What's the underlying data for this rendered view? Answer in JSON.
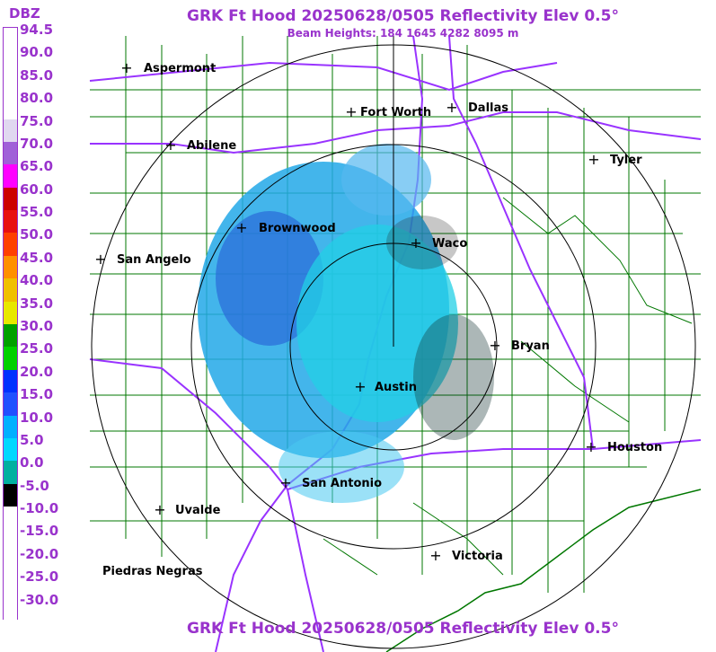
{
  "header": {
    "title": "GRK Ft Hood 20250628/0505 Reflectivity Elev 0.5°",
    "subtitle": "Beam Heights: 184 1645 4282 8095 m",
    "title_bottom": "GRK Ft Hood 20250628/0505 Reflectivity Elev 0.5°"
  },
  "legend": {
    "title": "DBZ",
    "labels": [
      "94.5",
      "90.0",
      "85.0",
      "80.0",
      "75.0",
      "70.0",
      "65.0",
      "60.0",
      "55.0",
      "50.0",
      "45.0",
      "40.0",
      "35.0",
      "30.0",
      "25.0",
      "20.0",
      "15.0",
      "10.0",
      "5.0",
      "0.0",
      "-5.0",
      "-10.0",
      "-15.0",
      "-20.0",
      "-25.0",
      "-30.0"
    ],
    "colors": [
      "#ffffff",
      "#ffffff",
      "#ffffff",
      "#ffffff",
      "#e0d8f0",
      "#a060d8",
      "#ff00ff",
      "#cc0000",
      "#e81010",
      "#ff4000",
      "#ff9000",
      "#f0c000",
      "#e8e800",
      "#00a000",
      "#00d000",
      "#0030ff",
      "#2050ff",
      "#00b0ff",
      "#00d8ff",
      "#00b0a0",
      "#000000",
      "#ffffff",
      "#ffffff",
      "#ffffff",
      "#ffffff",
      "#ffffff"
    ]
  },
  "cities": [
    {
      "name": "Aspermont"
    },
    {
      "name": "Fort Worth"
    },
    {
      "name": "Dallas"
    },
    {
      "name": "Abilene"
    },
    {
      "name": "Tyler"
    },
    {
      "name": "Brownwood"
    },
    {
      "name": "Waco"
    },
    {
      "name": "San Angelo"
    },
    {
      "name": "Bryan"
    },
    {
      "name": "Austin"
    },
    {
      "name": "Houston"
    },
    {
      "name": "San Antonio"
    },
    {
      "name": "Uvalde"
    },
    {
      "name": "Victoria"
    },
    {
      "name": "Piedras Negras"
    }
  ],
  "colors": {
    "title": "#9933cc",
    "county_lines": "#007700",
    "highways": "#9933ff",
    "range_rings": "#000000"
  }
}
